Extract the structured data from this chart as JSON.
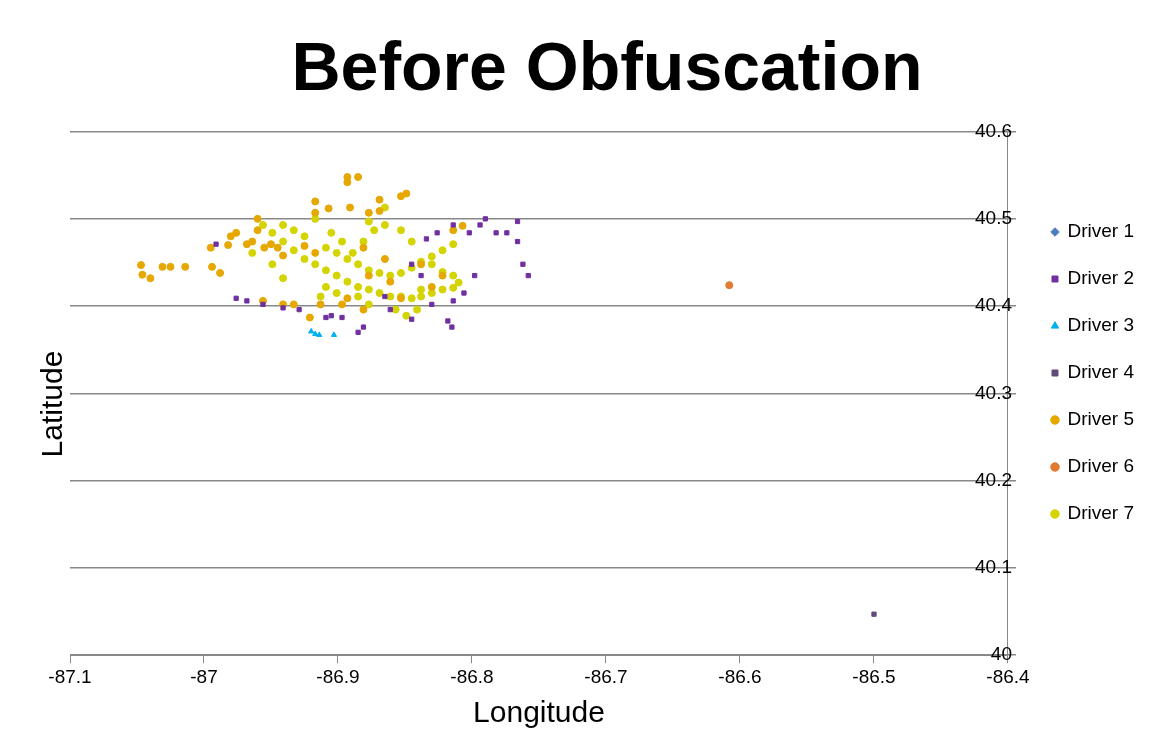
{
  "chart_data": {
    "type": "scatter",
    "title": "Before Obfuscation",
    "xlabel": "Longitude",
    "ylabel": "Latitude",
    "xlim": [
      -87.1,
      -86.4
    ],
    "xticks": [
      -87.1,
      -87,
      -86.9,
      -86.8,
      -86.7,
      -86.6,
      -86.5,
      -86.4
    ],
    "ylim": [
      40,
      40.6
    ],
    "yticks": [
      40,
      40.1,
      40.2,
      40.3,
      40.4,
      40.5,
      40.6
    ],
    "grid": "y",
    "legend": "right",
    "series": [
      {
        "name": "Driver 1",
        "color": "#4a7ebb",
        "marker": "diamond"
      },
      {
        "name": "Driver 2",
        "color": "#7030a0",
        "marker": "square",
        "x": [
          -86.991,
          -86.976,
          -86.968,
          -86.956,
          -86.941,
          -86.929,
          -86.909,
          -86.897,
          -86.885,
          -86.905,
          -86.861,
          -86.845,
          -86.83,
          -86.838,
          -86.845,
          -86.834,
          -86.826,
          -86.814,
          -86.802,
          -86.794,
          -86.79,
          -86.782,
          -86.774,
          -86.766,
          -86.766,
          -86.762,
          -86.758,
          -86.798,
          -86.806,
          -86.814,
          -86.818,
          -86.815,
          -86.865,
          -86.881
        ],
        "values": [
          40.471,
          40.409,
          40.406,
          40.402,
          40.398,
          40.396,
          40.387,
          40.387,
          40.37,
          40.389,
          40.396,
          40.385,
          40.402,
          40.435,
          40.448,
          40.477,
          40.484,
          40.493,
          40.484,
          40.493,
          40.5,
          40.484,
          40.484,
          40.497,
          40.474,
          40.448,
          40.435,
          40.435,
          40.415,
          40.406,
          40.383,
          40.376,
          40.411,
          40.376
        ]
      },
      {
        "name": "Driver 3",
        "color": "#00b0f0",
        "marker": "triangle",
        "x": [
          -86.92,
          -86.917,
          -86.914,
          -86.903
        ],
        "values": [
          40.371,
          40.368,
          40.367,
          40.367
        ]
      },
      {
        "name": "Driver 4",
        "color": "#604a7b",
        "marker": "square",
        "x": [
          -86.5
        ],
        "values": [
          40.047
        ]
      },
      {
        "name": "Driver 5",
        "color": "#e6a800",
        "marker": "circle",
        "x": [
          -87.047,
          -87.046,
          -87.04,
          -87.031,
          -87.025,
          -87.014,
          -86.995,
          -86.994,
          -86.988,
          -86.982,
          -86.98,
          -86.976,
          -86.968,
          -86.964,
          -86.96,
          -86.96,
          -86.955,
          -86.95,
          -86.945,
          -86.941,
          -86.956,
          -86.941,
          -86.933,
          -86.921,
          -86.913,
          -86.917,
          -86.917,
          -86.907,
          -86.893,
          -86.893,
          -86.885,
          -86.891,
          -86.877,
          -86.869,
          -86.869,
          -86.853,
          -86.849,
          -86.925,
          -86.917,
          -86.897,
          -86.893,
          -86.881,
          -86.877,
          -86.861,
          -86.853,
          -86.838,
          -86.83,
          -86.822,
          -86.814,
          -86.807,
          -86.881,
          -86.865
        ],
        "values": [
          40.447,
          40.436,
          40.432,
          40.445,
          40.445,
          40.445,
          40.467,
          40.445,
          40.438,
          40.47,
          40.48,
          40.484,
          40.471,
          40.474,
          40.5,
          40.487,
          40.467,
          40.471,
          40.467,
          40.458,
          40.406,
          40.402,
          40.402,
          40.387,
          40.402,
          40.507,
          40.52,
          40.512,
          40.548,
          40.542,
          40.548,
          40.513,
          40.507,
          40.522,
          40.509,
          40.526,
          40.529,
          40.469,
          40.461,
          40.402,
          40.409,
          40.396,
          40.435,
          40.428,
          40.409,
          40.448,
          40.422,
          40.435,
          40.487,
          40.492,
          40.467,
          40.454
        ]
      },
      {
        "name": "Driver 6",
        "color": "#e07b30",
        "marker": "circle",
        "x": [
          -86.608
        ],
        "values": [
          40.424
        ]
      },
      {
        "name": "Driver 7",
        "color": "#d4d400",
        "marker": "circle",
        "x": [
          -86.956,
          -86.949,
          -86.941,
          -86.933,
          -86.925,
          -86.917,
          -86.909,
          -86.901,
          -86.893,
          -86.885,
          -86.877,
          -86.869,
          -86.861,
          -86.853,
          -86.845,
          -86.838,
          -86.83,
          -86.822,
          -86.814,
          -86.941,
          -86.933,
          -86.925,
          -86.909,
          -86.901,
          -86.893,
          -86.885,
          -86.877,
          -86.869,
          -86.861,
          -86.853,
          -86.845,
          -86.838,
          -86.83,
          -86.822,
          -86.814,
          -86.909,
          -86.913,
          -86.901,
          -86.885,
          -86.877,
          -86.857,
          -86.849,
          -86.841,
          -86.917,
          -86.905,
          -86.897,
          -86.889,
          -86.881,
          -86.873,
          -86.865,
          -86.877,
          -86.865,
          -86.853,
          -86.845,
          -86.83,
          -86.822,
          -86.814,
          -86.838,
          -86.81,
          -86.964,
          -86.949,
          -86.941
        ],
        "values": [
          40.493,
          40.484,
          40.474,
          40.464,
          40.454,
          40.448,
          40.441,
          40.435,
          40.428,
          40.422,
          40.419,
          40.415,
          40.411,
          40.411,
          40.409,
          40.411,
          40.415,
          40.419,
          40.421,
          40.493,
          40.487,
          40.48,
          40.467,
          40.461,
          40.454,
          40.448,
          40.441,
          40.438,
          40.435,
          40.438,
          40.444,
          40.451,
          40.457,
          40.464,
          40.471,
          40.422,
          40.411,
          40.415,
          40.411,
          40.402,
          40.396,
          40.389,
          40.396,
          40.5,
          40.484,
          40.474,
          40.461,
          40.474,
          40.487,
          40.493,
          40.497,
          40.513,
          40.487,
          40.474,
          40.448,
          40.439,
          40.435,
          40.419,
          40.427,
          40.461,
          40.448,
          40.432
        ]
      }
    ]
  }
}
